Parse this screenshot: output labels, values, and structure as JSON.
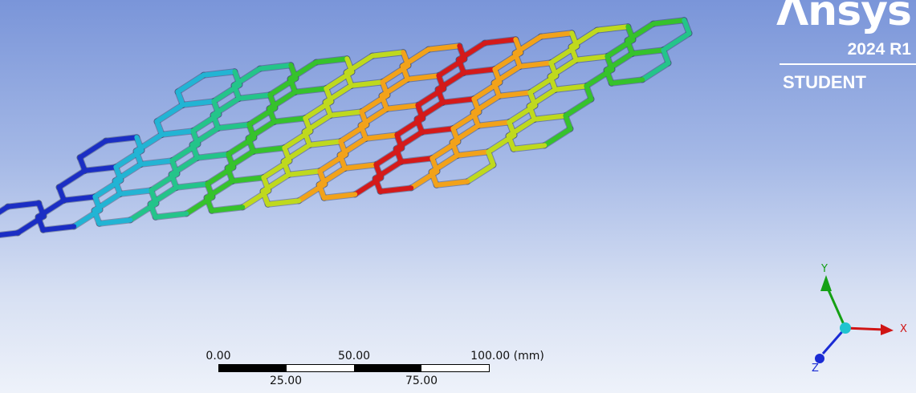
{
  "brand": {
    "name": "Λnsys",
    "version": "2024 R1",
    "edition": "STUDENT"
  },
  "scale_bar": {
    "top_labels": [
      "0.00",
      "50.00",
      "100.00 (mm)"
    ],
    "bottom_labels": [
      "25.00",
      "75.00"
    ]
  },
  "triad": {
    "x_label": "X",
    "y_label": "Y",
    "z_label": "Z",
    "x_color": "#d01515",
    "y_color": "#15a015",
    "z_color": "#1a2bd4",
    "origin_color": "#20c4d0"
  },
  "model": {
    "shape": "hexagonal honeycomb lattice",
    "contour_colors": [
      "#1b2ec4",
      "#22b4d4",
      "#24c48a",
      "#36c22c",
      "#bfd91e",
      "#f2a21a",
      "#d41a1a"
    ]
  }
}
